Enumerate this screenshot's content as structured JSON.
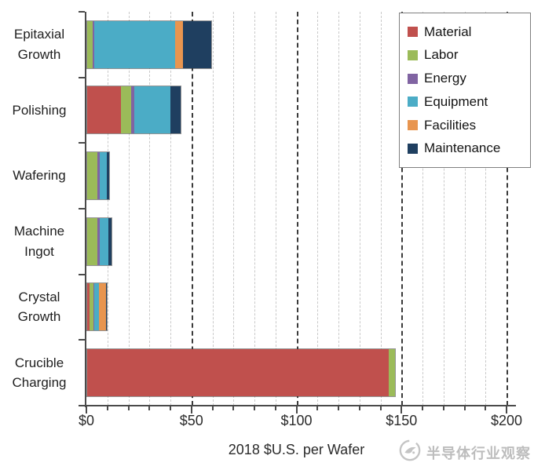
{
  "chart_data": {
    "type": "bar",
    "orientation": "horizontal",
    "stacked": true,
    "title": "",
    "xlabel": "2018 $U.S. per Wafer",
    "categories": [
      "Epitaxial Growth",
      "Polishing",
      "Wafering",
      "Machine Ingot",
      "Crystal Growth",
      "Crucible Charging"
    ],
    "series": [
      {
        "name": "Material",
        "color": "#C0504D",
        "values": [
          0,
          16,
          0,
          0,
          1,
          143.5
        ]
      },
      {
        "name": "Labor",
        "color": "#9BBB59",
        "values": [
          2.5,
          5,
          5,
          5,
          2,
          3
        ]
      },
      {
        "name": "Energy",
        "color": "#8064A2",
        "values": [
          1,
          1.5,
          1,
          1,
          0.5,
          0
        ]
      },
      {
        "name": "Equipment",
        "color": "#4BACC6",
        "values": [
          38.5,
          17,
          3.5,
          4,
          2,
          0
        ]
      },
      {
        "name": "Facilities",
        "color": "#E8954F",
        "values": [
          3.5,
          0,
          0,
          0,
          3.5,
          0
        ]
      },
      {
        "name": "Maintenance",
        "color": "#1F3F60",
        "values": [
          13.5,
          5,
          1,
          1.5,
          0.5,
          0
        ]
      }
    ],
    "xlim": [
      0,
      200
    ],
    "x_major_ticks": [
      {
        "value": 0,
        "label": "$0"
      },
      {
        "value": 50,
        "label": "$50"
      },
      {
        "value": 100,
        "label": "$100"
      },
      {
        "value": 150,
        "label": "$150"
      },
      {
        "value": 200,
        "label": "$200"
      }
    ],
    "x_minor_tick_step": 10,
    "grid": {
      "minor_color": "#c9c9c9",
      "major_color": "#3b3b3b",
      "style": "dashed"
    },
    "legend_position": "top-right",
    "axis_color": "#4a4a4a"
  },
  "watermark": {
    "text": "半导体行业观察",
    "color": "#bdbdbd"
  }
}
